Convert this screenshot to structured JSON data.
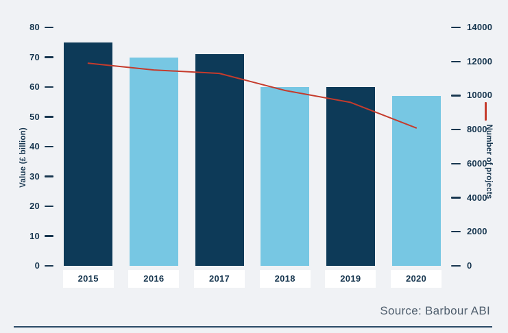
{
  "chart_data": {
    "type": "bar",
    "categories": [
      "2015",
      "2016",
      "2017",
      "2018",
      "2019",
      "2020"
    ],
    "series": [
      {
        "name": "Value (£ billion)",
        "type": "bar",
        "axis": "left",
        "values": [
          75,
          70,
          71,
          60,
          60,
          57
        ],
        "bar_colors": [
          "#0d3a58",
          "#77c7e3",
          "#0d3a58",
          "#77c7e3",
          "#0d3a58",
          "#77c7e3"
        ]
      },
      {
        "name": "Number of projects",
        "type": "line",
        "axis": "right",
        "values": [
          11900,
          11500,
          11300,
          10300,
          9600,
          8100
        ],
        "color": "#c53b2c"
      }
    ],
    "title": "",
    "xlabel": "",
    "left_axis": {
      "label": "Value (£ billion)",
      "min": 0,
      "max": 80,
      "tick_step": 10,
      "ticks": [
        0,
        10,
        20,
        30,
        40,
        50,
        60,
        70,
        80
      ]
    },
    "right_axis": {
      "label": "Number of projects",
      "min": 0,
      "max": 14000,
      "tick_step": 2000,
      "ticks": [
        0,
        2000,
        4000,
        6000,
        8000,
        10000,
        12000,
        14000
      ]
    },
    "grid": "off",
    "legend": {
      "line_marker_color": "#c53b2c",
      "position": "right-axis"
    },
    "source": "Source: Barbour ABI"
  },
  "palette": {
    "background": "#f0f2f5",
    "bar_dark": "#0d3a58",
    "bar_light": "#77c7e3",
    "line_red": "#c53b2c",
    "axis_text": "#17364f",
    "source_text": "#4f5e6d",
    "divider": "#2a4a66",
    "year_box": "#ffffff"
  }
}
